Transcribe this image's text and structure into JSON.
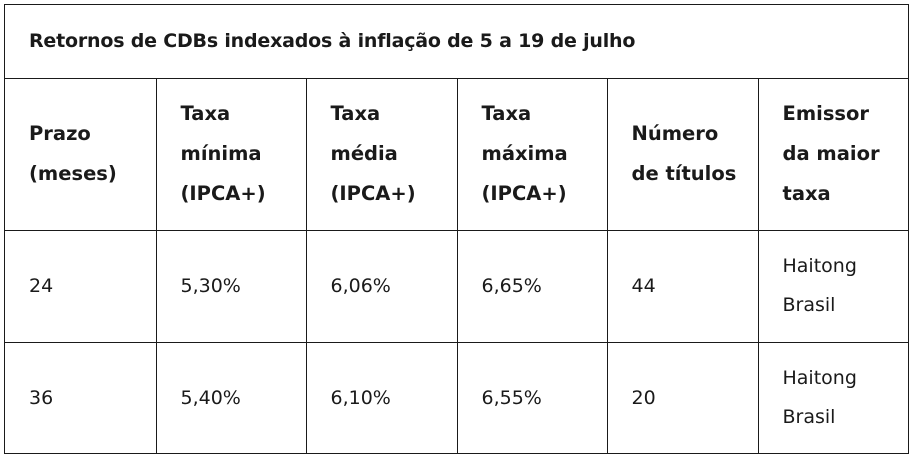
{
  "table": {
    "title": "Retornos de CDBs indexados à inflação de 5 a 19 de julho",
    "headers": [
      "Prazo\n(meses)",
      "Taxa\nmínima\n(IPCA+)",
      "Taxa\nmédia\n(IPCA+)",
      "Taxa\nmáxima\n(IPCA+)",
      "Número\nde títulos",
      "Emissor\nda maior\ntaxa"
    ],
    "rows": [
      {
        "prazo": "24",
        "taxa_minima": "5,30%",
        "taxa_media": "6,06%",
        "taxa_maxima": "6,65%",
        "numero_titulos": "44",
        "emissor": "Haitong\nBrasil"
      },
      {
        "prazo": "36",
        "taxa_minima": "5,40%",
        "taxa_media": "6,10%",
        "taxa_maxima": "6,55%",
        "numero_titulos": "20",
        "emissor": "Haitong\nBrasil"
      }
    ]
  }
}
